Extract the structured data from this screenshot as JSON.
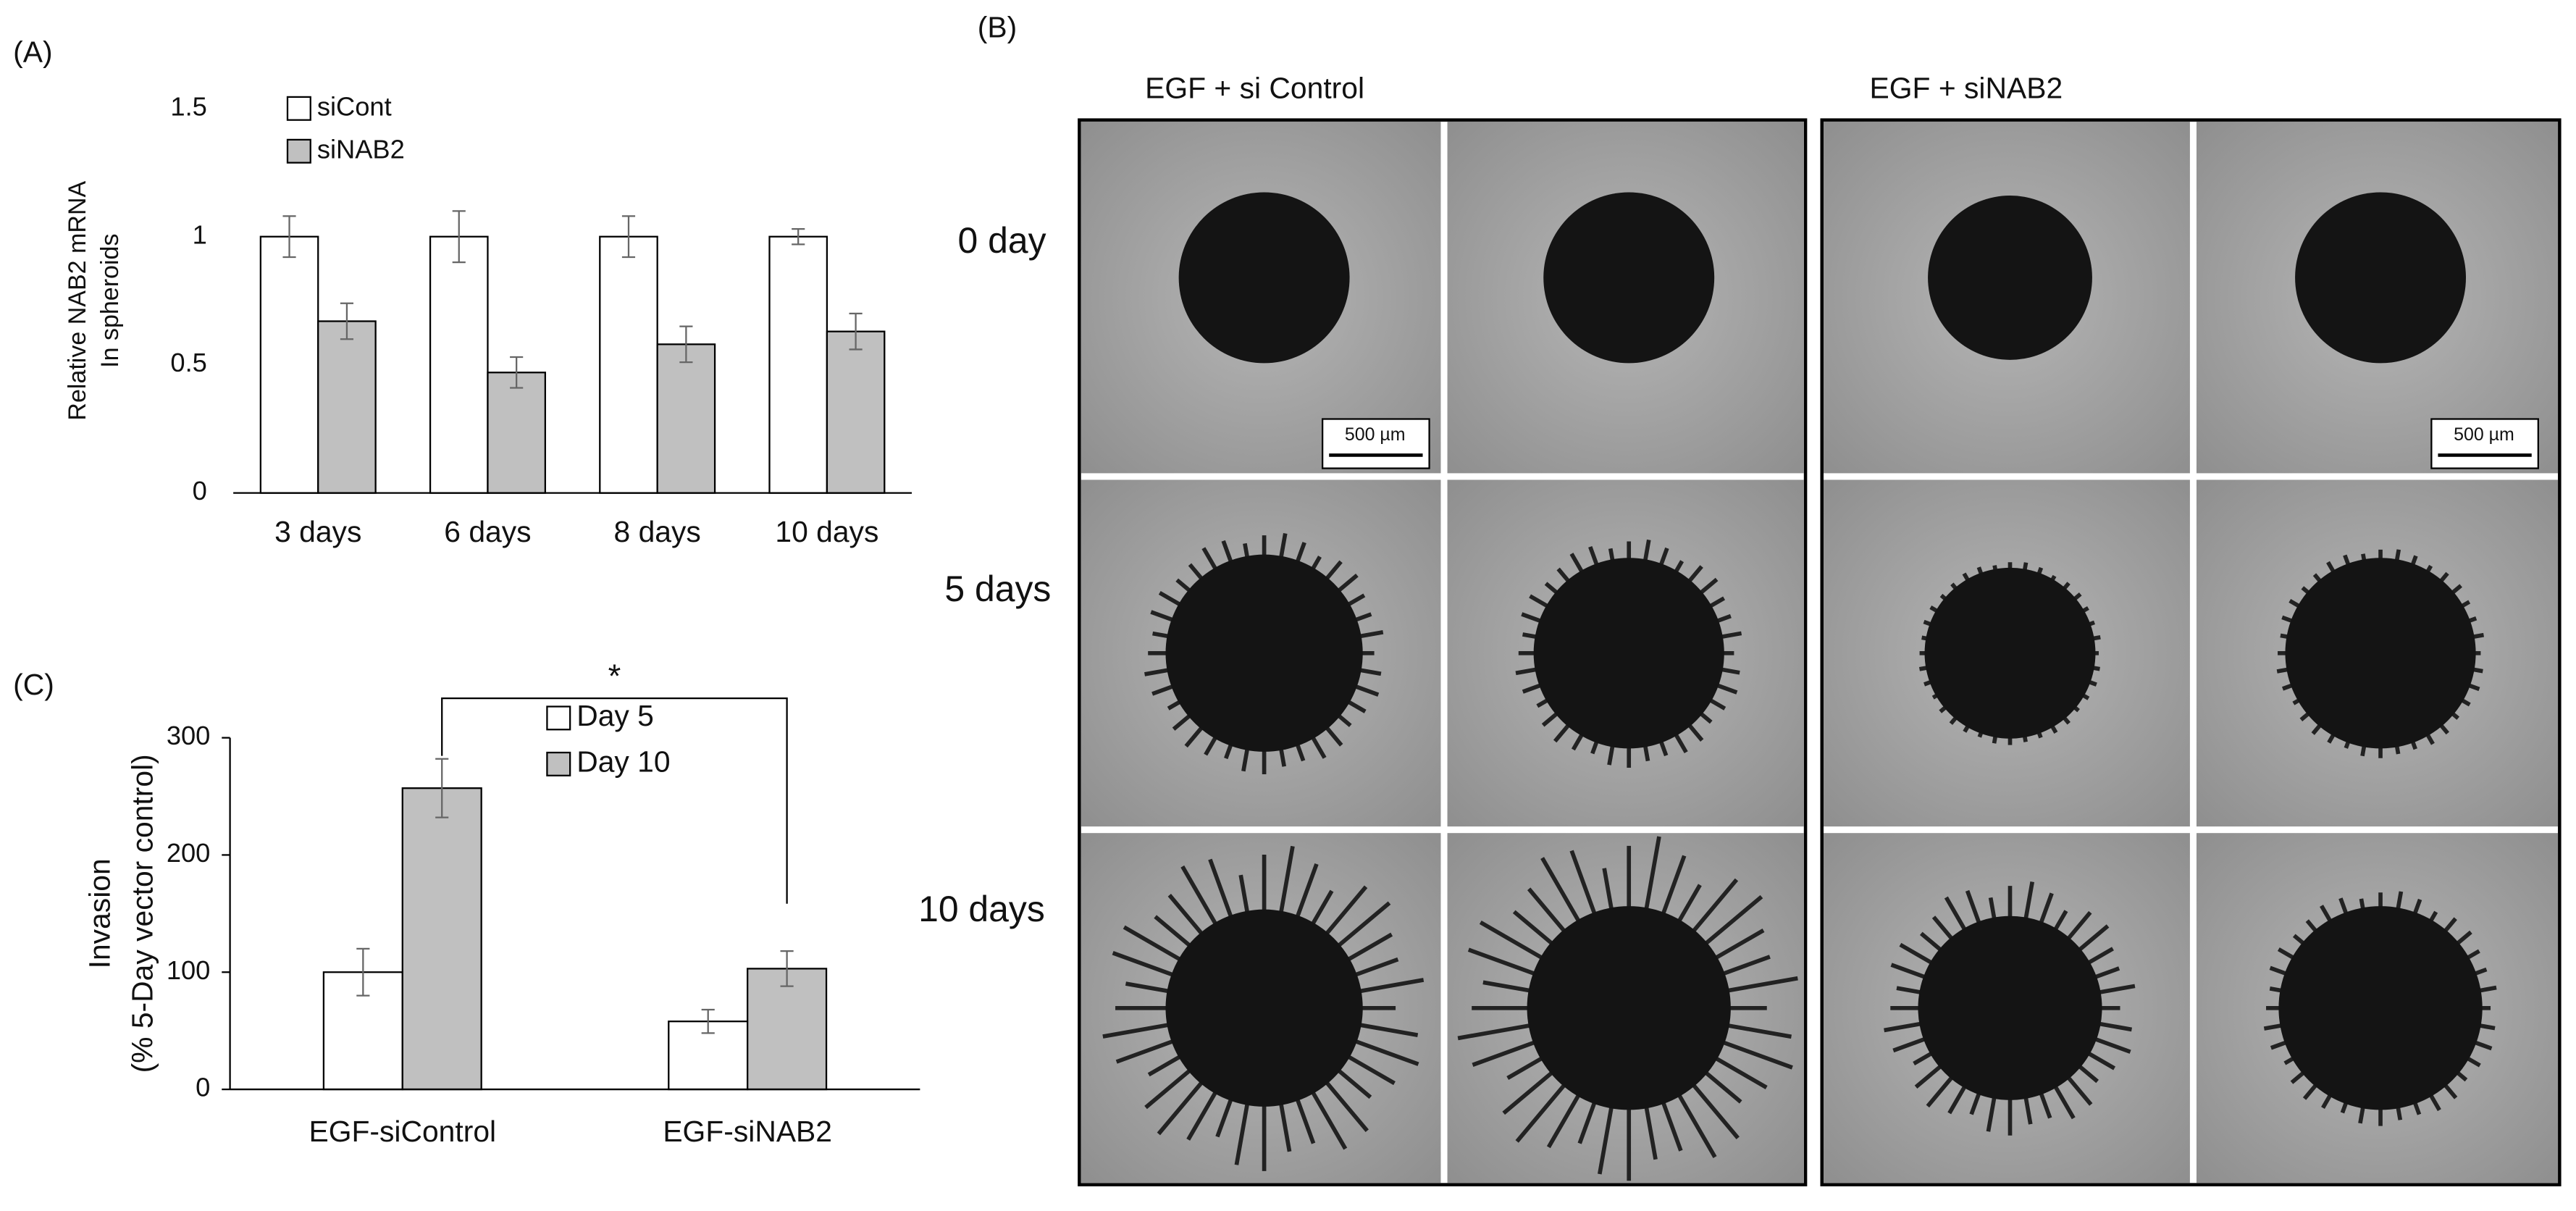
{
  "chart_data": [
    {
      "type": "bar",
      "panel_label": "(A)",
      "ylabel": [
        "Relative NAB2 mRNA",
        "In spheroids"
      ],
      "categories": [
        "3 days",
        "6 days",
        "8 days",
        "10 days"
      ],
      "series": [
        {
          "name": "siCont",
          "color": "#ffffff",
          "values": [
            1,
            1,
            1,
            1
          ],
          "errors": [
            0.08,
            0.1,
            0.08,
            0.03
          ]
        },
        {
          "name": "siNAB2",
          "color": "#c0c0c0",
          "values": [
            0.67,
            0.47,
            0.58,
            0.63
          ],
          "errors": [
            0.07,
            0.06,
            0.07,
            0.07
          ]
        }
      ],
      "ylim": [
        0,
        1.5
      ],
      "yticks": [
        0,
        0.5,
        1,
        1.5
      ],
      "legend": "top-left"
    },
    {
      "type": "bar",
      "panel_label": "(C)",
      "ylabel": [
        "Invasion",
        "(% 5-Day vector control)"
      ],
      "categories": [
        "EGF-siControl",
        "EGF-siNAB2"
      ],
      "series": [
        {
          "name": "Day 5",
          "color": "#ffffff",
          "values": [
            100,
            58
          ],
          "errors": [
            20,
            10
          ]
        },
        {
          "name": "Day 10",
          "color": "#c0c0c0",
          "values": [
            257,
            103
          ],
          "errors": [
            25,
            15
          ]
        }
      ],
      "ylim": [
        0,
        300
      ],
      "yticks": [
        0,
        100,
        200,
        300
      ],
      "legend": "top-center",
      "annotation": "*"
    }
  ],
  "panel_b": {
    "panel_label": "(B)",
    "columns": [
      "EGF + si Control",
      "EGF + siNAB2"
    ],
    "rows": [
      "0 day",
      "5 days",
      "10 days"
    ],
    "scale_bar": "500 µm"
  }
}
